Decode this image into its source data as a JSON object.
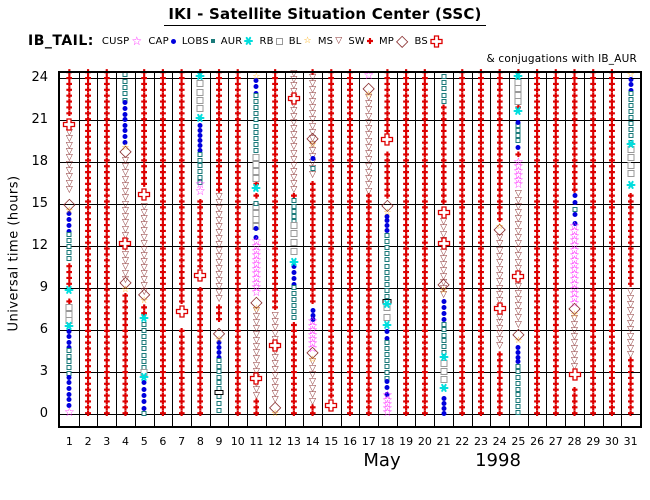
{
  "title": "IKI - Satellite Situation Center (SSC)",
  "legend": {
    "satellite_label": "IB_TAIL:",
    "items": [
      {
        "label": "CUSP",
        "glyph": "cusp"
      },
      {
        "label": "CAP",
        "glyph": "cap"
      },
      {
        "label": "LOBS",
        "glyph": "lobsf"
      },
      {
        "label": "AUR",
        "glyph": "aur"
      },
      {
        "label": "RB",
        "glyph": "rb"
      },
      {
        "label": "BL",
        "glyph": "bl"
      },
      {
        "label": "MS",
        "glyph": "ms"
      },
      {
        "label": "SW",
        "glyph": "sw"
      },
      {
        "label": "MP",
        "glyph": "mp"
      },
      {
        "label": "BS",
        "glyph": "bs"
      }
    ],
    "note": "& conjugations with IB_AUR"
  },
  "axes": {
    "y_label": "Universal time (hours)",
    "y_ticks": [
      0,
      3,
      6,
      9,
      12,
      15,
      18,
      21,
      24
    ],
    "x_ticks": [
      1,
      2,
      3,
      4,
      5,
      6,
      7,
      8,
      9,
      10,
      11,
      12,
      13,
      14,
      15,
      16,
      17,
      18,
      19,
      20,
      21,
      22,
      23,
      24,
      25,
      26,
      27,
      28,
      29,
      30,
      31
    ],
    "month": "May",
    "year": "1998"
  },
  "colors": {
    "cusp": "#ff22ff",
    "cap": "#0000dd",
    "lobs": "#1a7a7a",
    "aur": "#00dddd",
    "rb": "#999999",
    "bl": "#ffaa00",
    "ms": "#8b3232",
    "sw": "#dd0000",
    "mp": "#8b3232",
    "bs": "#dd0000",
    "blk": "#000000",
    "grid": "#000000"
  },
  "chart_data": {
    "type": "scatter",
    "title": "IKI - Satellite Situation Center (SSC)",
    "satellite": "IB_TAIL",
    "xlabel": "May 1998 (day of month)",
    "ylabel": "Universal time (hours)",
    "x_range": [
      1,
      31
    ],
    "y_range": [
      0,
      24
    ],
    "grid": true,
    "legend_position": "top",
    "background_series": {
      "name": "SW markers / conjugations with IB_AUR",
      "marker": "sw",
      "days": "1-31 every day",
      "t_start": 0.2,
      "t_end": 24.4,
      "step_hours": 0.42,
      "note": "dense red markers fill each day column wherever no region event is drawn"
    },
    "region_events_format": "[day, region, tStartHoursUT, tEndHoursUT(optional for runs)]",
    "region_events": [
      [
        1,
        "bs",
        20.6
      ],
      [
        1,
        "ms",
        16.2,
        20.3
      ],
      [
        1,
        "mp",
        15.0
      ],
      [
        1,
        "bl",
        14.7
      ],
      [
        1,
        "cap",
        13.2,
        14.5
      ],
      [
        1,
        "lobs",
        11.3,
        13.0
      ],
      [
        1,
        "aur",
        8.9
      ],
      [
        1,
        "rb",
        6.8,
        7.7
      ],
      [
        1,
        "aur",
        6.3
      ],
      [
        1,
        "cap",
        4.9,
        6.1
      ],
      [
        1,
        "lobs",
        3.1,
        4.7
      ],
      [
        1,
        "cap",
        0.8,
        2.8
      ],
      [
        1,
        "cusp",
        0.2
      ],
      [
        4,
        "lobs",
        22.6,
        24.4
      ],
      [
        4,
        "cap",
        19.6,
        22.4
      ],
      [
        4,
        "bl",
        19.2
      ],
      [
        4,
        "mp",
        18.8
      ],
      [
        4,
        "ms",
        9.8,
        18.3
      ],
      [
        4,
        "bs",
        12.1
      ],
      [
        4,
        "mp",
        9.4
      ],
      [
        4,
        "bl",
        9.1
      ],
      [
        5,
        "bs",
        15.6
      ],
      [
        5,
        "ms",
        8.9,
        15.0
      ],
      [
        5,
        "mp",
        8.6
      ],
      [
        5,
        "bl",
        8.3
      ],
      [
        5,
        "aur",
        6.9
      ],
      [
        5,
        "lobs",
        3.5,
        6.6
      ],
      [
        5,
        "rb",
        3.1
      ],
      [
        5,
        "aur",
        2.7
      ],
      [
        5,
        "cap",
        0.6,
        2.4
      ],
      [
        5,
        "lobs",
        0.2
      ],
      [
        7,
        "bs",
        7.2
      ],
      [
        8,
        "aur",
        24.2
      ],
      [
        8,
        "rb",
        21.9,
        23.7
      ],
      [
        8,
        "aur",
        21.2
      ],
      [
        8,
        "cap",
        19.0,
        20.8
      ],
      [
        8,
        "lobs",
        16.7,
        18.7
      ],
      [
        8,
        "cusp",
        16.0,
        16.5
      ],
      [
        8,
        "bs",
        9.8
      ],
      [
        9,
        "ms",
        8.4,
        15.7
      ],
      [
        9,
        "mp",
        5.8
      ],
      [
        9,
        "bl",
        5.5
      ],
      [
        9,
        "cap",
        4.2,
        5.3
      ],
      [
        9,
        "lobs",
        2.0,
        4.0
      ],
      [
        9,
        "blk",
        1.7
      ],
      [
        9,
        "lobs",
        0.4,
        1.4
      ],
      [
        11,
        "bl",
        24.3
      ],
      [
        11,
        "cap",
        23.1,
        24.0
      ],
      [
        11,
        "lobs",
        18.6,
        22.9
      ],
      [
        11,
        "rb",
        16.9,
        18.4
      ],
      [
        11,
        "aur",
        16.2
      ],
      [
        11,
        "lobs",
        15.2
      ],
      [
        11,
        "rb",
        13.5,
        14.9
      ],
      [
        11,
        "cap",
        12.8,
        13.4
      ],
      [
        11,
        "cusp",
        8.8,
        12.4
      ],
      [
        11,
        "mp",
        8.0
      ],
      [
        11,
        "bl",
        7.7
      ],
      [
        11,
        "ms",
        1.5,
        7.6
      ],
      [
        11,
        "bs",
        2.4
      ],
      [
        12,
        "ms",
        1.2,
        7.2
      ],
      [
        12,
        "bs",
        4.8
      ],
      [
        12,
        "mp",
        0.5
      ],
      [
        12,
        "bl",
        0.2
      ],
      [
        13,
        "ms",
        16.2,
        24.5
      ],
      [
        13,
        "bs",
        22.4
      ],
      [
        13,
        "lobs",
        13.9,
        15.4
      ],
      [
        13,
        "rb",
        11.7,
        13.6
      ],
      [
        13,
        "aur",
        10.9
      ],
      [
        13,
        "cap",
        9.4,
        10.7
      ],
      [
        13,
        "lobs",
        7.1,
        9.2
      ],
      [
        14,
        "ms",
        17.3,
        24.2
      ],
      [
        14,
        "mp",
        19.7
      ],
      [
        14,
        "bl",
        19.4
      ],
      [
        14,
        "cap",
        18.4
      ],
      [
        14,
        "lobs",
        17.7
      ],
      [
        14,
        "cap",
        6.9,
        7.6
      ],
      [
        14,
        "cusp",
        4.8,
        6.7
      ],
      [
        14,
        "mp",
        4.4
      ],
      [
        14,
        "bl",
        4.1
      ],
      [
        14,
        "ms",
        1.1,
        3.9
      ],
      [
        15,
        "bs",
        0.5
      ],
      [
        17,
        "cusp",
        24.3
      ],
      [
        17,
        "mp",
        23.3
      ],
      [
        17,
        "bl",
        23.0
      ],
      [
        17,
        "ms",
        16.1,
        22.8
      ],
      [
        18,
        "bs",
        19.5
      ],
      [
        18,
        "mp",
        14.9
      ],
      [
        18,
        "bl",
        14.6
      ],
      [
        18,
        "cap",
        13.3,
        14.3
      ],
      [
        18,
        "lobs",
        8.6,
        12.9
      ],
      [
        18,
        "blk",
        8.2
      ],
      [
        18,
        "aur",
        7.9
      ],
      [
        18,
        "rb",
        7.0,
        7.7
      ],
      [
        18,
        "aur",
        6.4
      ],
      [
        18,
        "cap",
        5.6,
        6.1
      ],
      [
        18,
        "lobs",
        2.7,
        5.3
      ],
      [
        18,
        "cap",
        1.6,
        2.5
      ],
      [
        18,
        "cusp",
        0.2,
        1.4
      ],
      [
        21,
        "lobs",
        22.5,
        24.3
      ],
      [
        21,
        "bs",
        14.3
      ],
      [
        21,
        "ms",
        8.7,
        13.9
      ],
      [
        21,
        "bs",
        12.1
      ],
      [
        21,
        "mp",
        9.3
      ],
      [
        21,
        "bl",
        9.0
      ],
      [
        21,
        "cap",
        6.9,
        8.2
      ],
      [
        21,
        "lobs",
        4.6,
        6.6
      ],
      [
        21,
        "aur",
        4.1
      ],
      [
        21,
        "rb",
        2.6,
        3.7
      ],
      [
        21,
        "aur",
        1.9
      ],
      [
        21,
        "cap",
        0.2,
        1.3
      ],
      [
        24,
        "bl",
        13.6
      ],
      [
        24,
        "mp",
        13.2
      ],
      [
        24,
        "ms",
        7.8,
        12.8
      ],
      [
        24,
        "bs",
        7.4
      ],
      [
        24,
        "ms",
        5.1,
        7.1
      ],
      [
        25,
        "aur",
        24.2
      ],
      [
        25,
        "rb",
        22.4,
        23.8
      ],
      [
        25,
        "aur",
        21.7
      ],
      [
        25,
        "cap",
        21.0
      ],
      [
        25,
        "lobs",
        19.7,
        20.8
      ],
      [
        25,
        "cap",
        19.2
      ],
      [
        25,
        "cusp",
        16.5,
        18.1
      ],
      [
        25,
        "ms",
        6.6,
        15.9
      ],
      [
        25,
        "bs",
        9.7
      ],
      [
        25,
        "mp",
        5.7
      ],
      [
        25,
        "bl",
        5.4
      ],
      [
        25,
        "cap",
        3.9,
        4.9
      ],
      [
        25,
        "lobs",
        0.3,
        3.6
      ],
      [
        28,
        "cap",
        15.3,
        15.8
      ],
      [
        28,
        "lobs",
        14.8
      ],
      [
        28,
        "cap",
        13.8,
        14.4
      ],
      [
        28,
        "cusp",
        8.0,
        13.5
      ],
      [
        28,
        "mp",
        7.6
      ],
      [
        28,
        "bl",
        7.3
      ],
      [
        28,
        "ms",
        3.6,
        7.0
      ],
      [
        28,
        "bs",
        2.7
      ],
      [
        31,
        "bl",
        24.4
      ],
      [
        31,
        "cap",
        23.3,
        24.1
      ],
      [
        31,
        "lobs",
        19.6,
        23.1
      ],
      [
        31,
        "aur",
        19.3
      ],
      [
        31,
        "rb",
        17.3,
        19.0
      ],
      [
        31,
        "aur",
        16.4
      ],
      [
        31,
        "ms",
        4.4,
        8.9
      ]
    ]
  }
}
